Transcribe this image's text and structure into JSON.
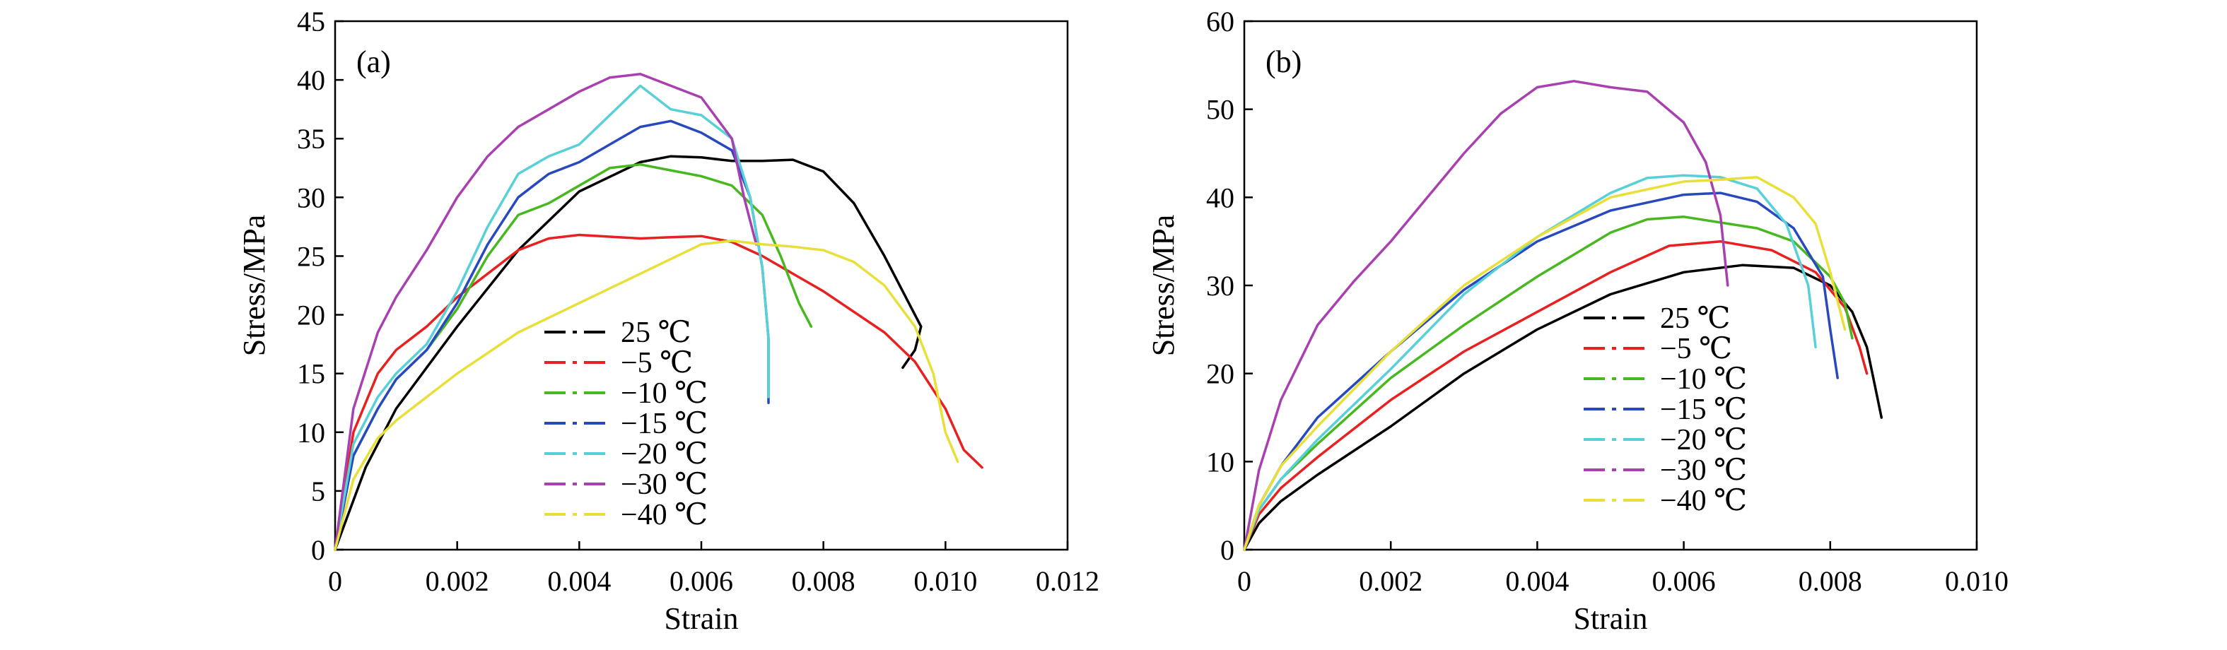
{
  "chart_data": [
    {
      "type": "line",
      "panel_label": "(a)",
      "xlabel": "Strain",
      "ylabel": "Stress/MPa",
      "xlim": [
        0,
        0.012
      ],
      "ylim": [
        0,
        45
      ],
      "xticks": [
        0,
        0.002,
        0.004,
        0.006,
        0.008,
        0.01,
        0.012
      ],
      "xtick_labels": [
        "0",
        "0.002",
        "0.004",
        "0.006",
        "0.008",
        "0.010",
        "0.012"
      ],
      "yticks": [
        0,
        5,
        10,
        15,
        20,
        25,
        30,
        35,
        40,
        45
      ],
      "ytick_labels": [
        "0",
        "5",
        "10",
        "15",
        "20",
        "25",
        "30",
        "35",
        "40",
        "45"
      ],
      "grid": false,
      "legend_position": "lower-center",
      "series": [
        {
          "name": "25 ℃",
          "color": "#000000",
          "x": [
            0,
            0.0005,
            0.001,
            0.002,
            0.003,
            0.004,
            0.005,
            0.0055,
            0.006,
            0.0065,
            0.007,
            0.0075,
            0.008,
            0.0085,
            0.009,
            0.0094,
            0.0096,
            0.0095,
            0.0093
          ],
          "y": [
            0,
            7,
            12,
            19,
            25.5,
            30.5,
            33,
            33.5,
            33.4,
            33.1,
            33.1,
            33.2,
            32.2,
            29.5,
            25,
            21,
            19,
            17,
            15.5
          ]
        },
        {
          "name": "−5 ℃",
          "color": "#e82020",
          "x": [
            0,
            0.0003,
            0.0007,
            0.001,
            0.0015,
            0.002,
            0.003,
            0.0035,
            0.004,
            0.005,
            0.0055,
            0.006,
            0.0065,
            0.007,
            0.008,
            0.009,
            0.0095,
            0.01,
            0.0103,
            0.0106
          ],
          "y": [
            0,
            10,
            15,
            17,
            19,
            21.5,
            25.5,
            26.5,
            26.8,
            26.5,
            26.6,
            26.7,
            26.2,
            25,
            22,
            18.5,
            16,
            12,
            8.5,
            7
          ]
        },
        {
          "name": "−10 ℃",
          "color": "#48b820",
          "x": [
            0,
            0.0003,
            0.0007,
            0.001,
            0.0015,
            0.002,
            0.0025,
            0.003,
            0.0035,
            0.004,
            0.0045,
            0.005,
            0.0055,
            0.006,
            0.0065,
            0.007,
            0.0073,
            0.0076,
            0.0078
          ],
          "y": [
            0,
            8,
            12,
            14.5,
            17,
            20.5,
            25,
            28.5,
            29.5,
            31,
            32.5,
            32.8,
            32.3,
            31.8,
            31,
            28.5,
            25,
            21,
            19
          ]
        },
        {
          "name": "−15 ℃",
          "color": "#2848c0",
          "x": [
            0,
            0.0003,
            0.0007,
            0.001,
            0.0015,
            0.002,
            0.0025,
            0.003,
            0.0035,
            0.004,
            0.0045,
            0.005,
            0.0055,
            0.006,
            0.0065,
            0.0068,
            0.007,
            0.0071,
            0.0071
          ],
          "y": [
            0,
            8,
            12,
            14.5,
            17,
            21,
            26,
            30,
            32,
            33,
            34.5,
            36,
            36.5,
            35.5,
            34,
            30,
            24,
            18,
            12.5
          ]
        },
        {
          "name": "−20 ℃",
          "color": "#58d0d8",
          "x": [
            0,
            0.0003,
            0.0007,
            0.001,
            0.0015,
            0.002,
            0.0025,
            0.003,
            0.0035,
            0.004,
            0.0045,
            0.005,
            0.0055,
            0.006,
            0.0065,
            0.0068,
            0.007,
            0.0071,
            0.0071
          ],
          "y": [
            0,
            9,
            13,
            15,
            17.5,
            22,
            27.5,
            32,
            33.5,
            34.5,
            37,
            39.5,
            37.5,
            37,
            35,
            30,
            24,
            18,
            13
          ]
        },
        {
          "name": "−30 ℃",
          "color": "#a840b0",
          "x": [
            0,
            0.0003,
            0.0007,
            0.001,
            0.0015,
            0.002,
            0.0025,
            0.003,
            0.0035,
            0.004,
            0.0045,
            0.005,
            0.0055,
            0.006,
            0.0065,
            0.0067,
            0.0069
          ],
          "y": [
            0,
            12,
            18.5,
            21.5,
            25.5,
            30,
            33.5,
            36,
            37.5,
            39,
            40.2,
            40.5,
            39.5,
            38.5,
            35,
            30,
            26
          ]
        },
        {
          "name": "−40 ℃",
          "color": "#e8e038",
          "x": [
            0,
            0.0003,
            0.0007,
            0.001,
            0.0015,
            0.002,
            0.003,
            0.004,
            0.005,
            0.006,
            0.0065,
            0.007,
            0.0075,
            0.008,
            0.0085,
            0.009,
            0.0095,
            0.0098,
            0.01,
            0.0102
          ],
          "y": [
            0,
            6,
            9.5,
            11,
            13,
            15,
            18.5,
            21,
            23.5,
            26,
            26.3,
            26,
            25.8,
            25.5,
            24.5,
            22.5,
            19,
            15,
            10,
            7.5
          ]
        }
      ]
    },
    {
      "type": "line",
      "panel_label": "(b)",
      "xlabel": "Strain",
      "ylabel": "Stress/MPa",
      "xlim": [
        0,
        0.01
      ],
      "ylim": [
        0,
        60
      ],
      "xticks": [
        0,
        0.002,
        0.004,
        0.006,
        0.008,
        0.01
      ],
      "xtick_labels": [
        "0",
        "0.002",
        "0.004",
        "0.006",
        "0.008",
        "0.010"
      ],
      "yticks": [
        0,
        10,
        20,
        30,
        40,
        50,
        60
      ],
      "ytick_labels": [
        "0",
        "10",
        "20",
        "30",
        "40",
        "50",
        "60"
      ],
      "grid": false,
      "legend_position": "lower-center",
      "series": [
        {
          "name": "25 ℃",
          "color": "#000000",
          "x": [
            0,
            0.0002,
            0.0005,
            0.001,
            0.002,
            0.003,
            0.004,
            0.005,
            0.006,
            0.0068,
            0.0075,
            0.008,
            0.0083,
            0.0085,
            0.0086,
            0.0087
          ],
          "y": [
            0,
            3,
            5.5,
            8.5,
            14,
            20,
            25,
            29,
            31.5,
            32.3,
            32,
            30,
            27,
            23,
            19,
            15
          ]
        },
        {
          "name": "−5 ℃",
          "color": "#e82020",
          "x": [
            0,
            0.0002,
            0.0005,
            0.001,
            0.002,
            0.003,
            0.004,
            0.005,
            0.0058,
            0.0065,
            0.0072,
            0.0078,
            0.0082,
            0.0084,
            0.0085
          ],
          "y": [
            0,
            4,
            7,
            10.5,
            17,
            22.5,
            27,
            31.5,
            34.5,
            35,
            34,
            31.5,
            27.5,
            23,
            20
          ]
        },
        {
          "name": "−10 ℃",
          "color": "#48b820",
          "x": [
            0,
            0.0002,
            0.0005,
            0.001,
            0.002,
            0.003,
            0.004,
            0.005,
            0.0055,
            0.006,
            0.007,
            0.0075,
            0.008,
            0.0082,
            0.0083
          ],
          "y": [
            0,
            4.5,
            8,
            12,
            19.5,
            25.5,
            31,
            36,
            37.5,
            37.8,
            36.5,
            35,
            31,
            28,
            24
          ]
        },
        {
          "name": "−15 ℃",
          "color": "#2848c0",
          "x": [
            0,
            0.0002,
            0.0005,
            0.001,
            0.002,
            0.003,
            0.004,
            0.005,
            0.006,
            0.0065,
            0.007,
            0.0075,
            0.0079,
            0.008,
            0.0081
          ],
          "y": [
            0,
            5,
            9.5,
            15,
            22.5,
            29.5,
            35,
            38.5,
            40.3,
            40.5,
            39.5,
            36.5,
            31,
            25,
            19.5
          ]
        },
        {
          "name": "−20 ℃",
          "color": "#58d0d8",
          "x": [
            0,
            0.0002,
            0.0005,
            0.001,
            0.002,
            0.003,
            0.004,
            0.005,
            0.0055,
            0.006,
            0.0065,
            0.007,
            0.0074,
            0.0077,
            0.0078
          ],
          "y": [
            0,
            4.5,
            8,
            12.5,
            20.5,
            29,
            35.5,
            40.5,
            42.2,
            42.5,
            42.3,
            41,
            37,
            30,
            23
          ]
        },
        {
          "name": "−30 ℃",
          "color": "#a840b0",
          "x": [
            0,
            0.0002,
            0.0005,
            0.001,
            0.0015,
            0.002,
            0.0025,
            0.003,
            0.0035,
            0.004,
            0.0045,
            0.005,
            0.0055,
            0.006,
            0.0063,
            0.0065,
            0.0066
          ],
          "y": [
            0,
            9,
            17,
            25.5,
            30.5,
            35,
            40,
            45,
            49.5,
            52.5,
            53.2,
            52.5,
            52,
            48.5,
            44,
            38,
            30
          ]
        },
        {
          "name": "−40 ℃",
          "color": "#e8e038",
          "x": [
            0,
            0.0002,
            0.0005,
            0.001,
            0.002,
            0.003,
            0.004,
            0.005,
            0.006,
            0.0065,
            0.007,
            0.0075,
            0.0078,
            0.008,
            0.0082
          ],
          "y": [
            0,
            5,
            9.5,
            14,
            22.5,
            30,
            35.5,
            40,
            41.8,
            42,
            42.3,
            40,
            37,
            31.5,
            25
          ]
        }
      ]
    }
  ]
}
